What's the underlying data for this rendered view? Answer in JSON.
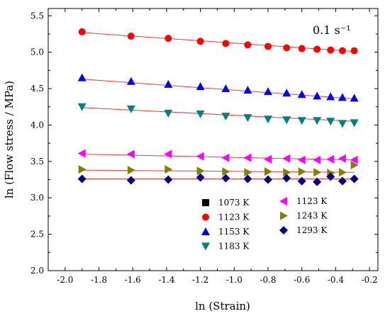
{
  "chart_data": {
    "type": "scatter",
    "title": "",
    "annotation": "0.1 s⁻¹",
    "xlabel": "ln (Strain)",
    "ylabel": "ln (Flow stress / MPa)",
    "xlim": [
      -2.1,
      -0.15
    ],
    "ylim": [
      2.0,
      5.6
    ],
    "xticks": [
      "-2.0",
      "-1.8",
      "-1.6",
      "-1.4",
      "-1.2",
      "-1.0",
      "-0.8",
      "-0.6",
      "-0.4",
      "-0.2"
    ],
    "xtick_values": [
      -2.0,
      -1.8,
      -1.6,
      -1.4,
      -1.2,
      -1.0,
      -0.8,
      -0.6,
      -0.4,
      -0.2
    ],
    "yticks": [
      "2.0",
      "2.5",
      "3.0",
      "3.5",
      "4.0",
      "4.5",
      "5.0",
      "5.5"
    ],
    "ytick_values": [
      2.0,
      2.5,
      3.0,
      3.5,
      4.0,
      4.5,
      5.0,
      5.5
    ],
    "x": [
      -1.9,
      -1.61,
      -1.39,
      -1.2,
      -1.05,
      -0.92,
      -0.8,
      -0.69,
      -0.6,
      -0.51,
      -0.43,
      -0.36,
      -0.29
    ],
    "fit_line_color": "#ff3333",
    "legend_placement": "bottom-right",
    "series": [
      {
        "name": "1073 K",
        "marker": "square",
        "color": "#000000",
        "values": []
      },
      {
        "name": "1123 K",
        "marker": "circle",
        "color": "#ff0000",
        "values": [
          5.28,
          5.22,
          5.19,
          5.15,
          5.12,
          5.1,
          5.08,
          5.06,
          5.05,
          5.04,
          5.03,
          5.02,
          5.02
        ],
        "fit": [
          5.27,
          5.01
        ]
      },
      {
        "name": "1153 K",
        "marker": "triangle-up",
        "color": "#0000ff",
        "values": [
          4.65,
          4.6,
          4.56,
          4.53,
          4.5,
          4.48,
          4.46,
          4.44,
          4.42,
          4.4,
          4.39,
          4.38,
          4.37
        ],
        "fit": [
          4.63,
          4.36
        ]
      },
      {
        "name": "1183 K",
        "marker": "triangle-down",
        "color": "#008080",
        "values": [
          4.25,
          4.22,
          4.16,
          4.15,
          4.12,
          4.1,
          4.08,
          4.07,
          4.06,
          4.06,
          4.05,
          4.02,
          4.03
        ],
        "fit": [
          4.24,
          4.05
        ]
      },
      {
        "name": "1123 K",
        "marker": "triangle-left",
        "color": "#ff00ff",
        "values": [
          3.61,
          3.6,
          3.6,
          3.57,
          3.55,
          3.55,
          3.53,
          3.54,
          3.52,
          3.52,
          3.53,
          3.54,
          3.52
        ],
        "fit": [
          3.6,
          3.52
        ]
      },
      {
        "name": "1243 K",
        "marker": "triangle-right",
        "color": "#808000",
        "values": [
          3.39,
          3.38,
          3.39,
          3.37,
          3.36,
          3.35,
          3.36,
          3.35,
          3.36,
          3.35,
          3.34,
          3.35,
          3.45
        ],
        "fit": [
          3.38,
          3.35
        ]
      },
      {
        "name": "1293 K",
        "marker": "diamond",
        "color": "#000080",
        "values": [
          3.26,
          3.24,
          3.25,
          3.28,
          3.27,
          3.26,
          3.25,
          3.27,
          3.23,
          3.22,
          3.29,
          3.23,
          3.26
        ],
        "fit": [
          3.26,
          3.26
        ]
      }
    ]
  }
}
